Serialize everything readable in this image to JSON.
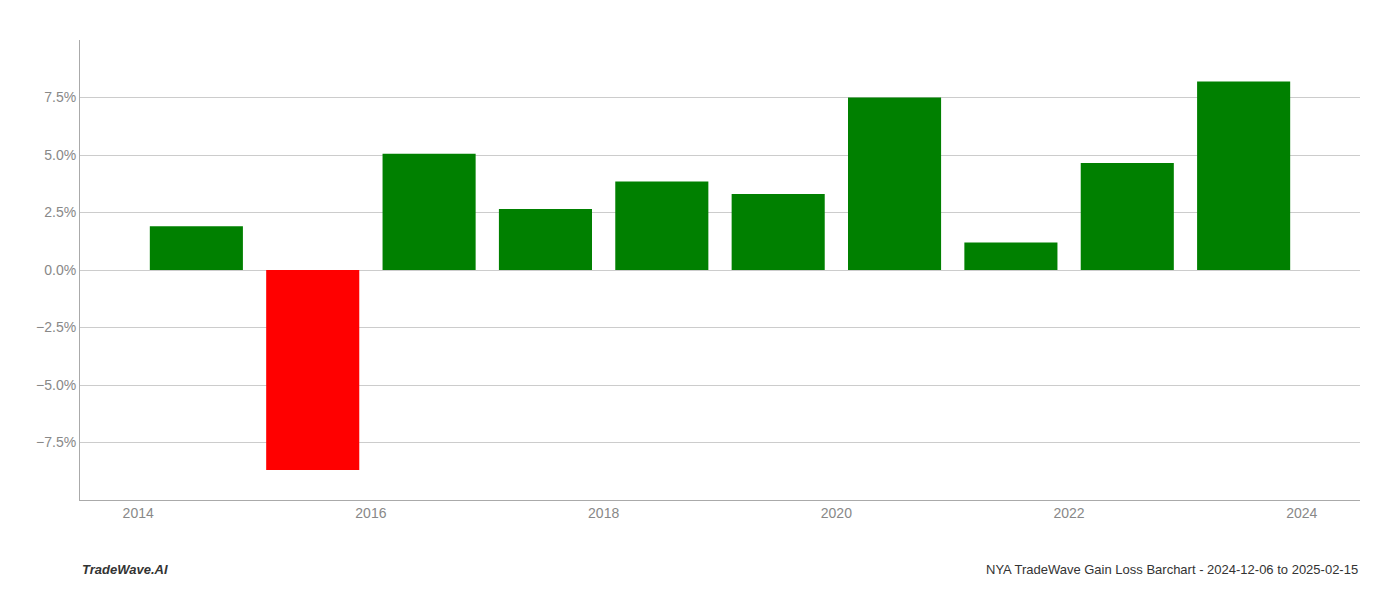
{
  "chart_data": {
    "type": "bar",
    "x": [
      2014.5,
      2015.5,
      2016.5,
      2017.5,
      2018.5,
      2019.5,
      2020.5,
      2021.5,
      2022.5,
      2023.5
    ],
    "values": [
      1.9,
      -8.7,
      5.05,
      2.65,
      3.85,
      3.3,
      7.5,
      1.2,
      4.65,
      8.2
    ],
    "colors": [
      "#008000",
      "#ff0000",
      "#008000",
      "#008000",
      "#008000",
      "#008000",
      "#008000",
      "#008000",
      "#008000",
      "#008000"
    ],
    "xlim": [
      2013.5,
      2024.5
    ],
    "xticks": [
      2014,
      2016,
      2018,
      2020,
      2022,
      2024
    ],
    "ylim": [
      -10.0,
      10.0
    ],
    "yticks": [
      {
        "value": -7.5,
        "label": "−7.5%"
      },
      {
        "value": -5.0,
        "label": "−5.0%"
      },
      {
        "value": -2.5,
        "label": "−2.5%"
      },
      {
        "value": 0.0,
        "label": "0.0%"
      },
      {
        "value": 2.5,
        "label": "2.5%"
      },
      {
        "value": 5.0,
        "label": "5.0%"
      },
      {
        "value": 7.5,
        "label": "7.5%"
      }
    ],
    "grid": true,
    "annotations": [
      "TradeWave.AI",
      "NYA TradeWave Gain Loss Barchart - 2024-12-06 to 2025-02-15"
    ]
  }
}
